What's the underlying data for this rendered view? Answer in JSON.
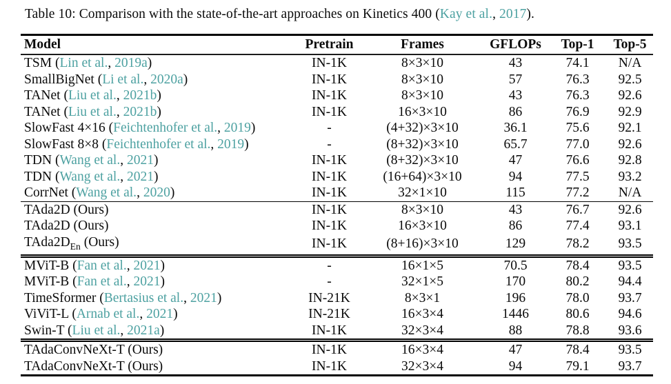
{
  "caption": {
    "prefix": "Table 10: Comparison with the state-of-the-art approaches on Kinetics 400 (",
    "cite_author": "Kay et al.",
    "cite_sep": ", ",
    "cite_year": "2017",
    "suffix": ")."
  },
  "colors": {
    "citation_teal": "#4da1a1",
    "text": "#0a0a0a",
    "background": "#ffffff"
  },
  "table": {
    "headers": [
      "Model",
      "Pretrain",
      "Frames",
      "GFLOPs",
      "Top-1",
      "Top-5"
    ],
    "sections": [
      {
        "separator": "none",
        "rows": [
          {
            "model": "TSM",
            "cite_author": "Lin et al.",
            "cite_year": "2019a",
            "pretrain": "IN-1K",
            "frames": "8×3×10",
            "gflops": "43",
            "top1": "74.1",
            "top5": "N/A"
          },
          {
            "model": "SmallBigNet",
            "cite_author": "Li et al.",
            "cite_year": "2020a",
            "pretrain": "IN-1K",
            "frames": "8×3×10",
            "gflops": "57",
            "top1": "76.3",
            "top5": "92.5"
          },
          {
            "model": "TANet",
            "cite_author": "Liu et al.",
            "cite_year": "2021b",
            "pretrain": "IN-1K",
            "frames": "8×3×10",
            "gflops": "43",
            "top1": "76.3",
            "top5": "92.6"
          },
          {
            "model": "TANet",
            "cite_author": "Liu et al.",
            "cite_year": "2021b",
            "pretrain": "IN-1K",
            "frames": "16×3×10",
            "gflops": "86",
            "top1": "76.9",
            "top5": "92.9"
          },
          {
            "model": "SlowFast 4×16",
            "cite_author": "Feichtenhofer et al.",
            "cite_year": "2019",
            "pretrain": "-",
            "frames": "(4+32)×3×10",
            "gflops": "36.1",
            "top1": "75.6",
            "top5": "92.1"
          },
          {
            "model": "SlowFast 8×8",
            "cite_author": "Feichtenhofer et al.",
            "cite_year": "2019",
            "pretrain": "-",
            "frames": "(8+32)×3×10",
            "gflops": "65.7",
            "top1": "77.0",
            "top5": "92.6"
          },
          {
            "model": "TDN",
            "cite_author": "Wang et al.",
            "cite_year": "2021",
            "pretrain": "IN-1K",
            "frames": "(8+32)×3×10",
            "gflops": "47",
            "top1": "76.6",
            "top5": "92.8"
          },
          {
            "model": "TDN",
            "cite_author": "Wang et al.",
            "cite_year": "2021",
            "pretrain": "IN-1K",
            "frames": "(16+64)×3×10",
            "gflops": "94",
            "top1": "77.5",
            "top5": "93.2"
          },
          {
            "model": "CorrNet",
            "cite_author": "Wang et al.",
            "cite_year": "2020",
            "pretrain": "IN-1K",
            "frames": "32×1×10",
            "gflops": "115",
            "top1": "77.2",
            "top5": "N/A"
          }
        ]
      },
      {
        "separator": "thin",
        "rows": [
          {
            "model": "TAda2D",
            "ours": " (Ours)",
            "pretrain": "IN-1K",
            "frames": "8×3×10",
            "gflops": "43",
            "top1": "76.7",
            "top5": "92.6"
          },
          {
            "model": "TAda2D",
            "ours": " (Ours)",
            "pretrain": "IN-1K",
            "frames": "16×3×10",
            "gflops": "86",
            "top1": "77.4",
            "top5": "93.1"
          },
          {
            "model": "TAda2D",
            "model_sub": "En",
            "ours": " (Ours)",
            "pretrain": "IN-1K",
            "frames": "(8+16)×3×10",
            "gflops": "129",
            "top1": "78.2",
            "top5": "93.5"
          }
        ]
      },
      {
        "separator": "thick",
        "rows": [
          {
            "model": "MViT-B",
            "cite_author": "Fan et al.",
            "cite_year": "2021",
            "pretrain": "-",
            "frames": "16×1×5",
            "gflops": "70.5",
            "top1": "78.4",
            "top5": "93.5"
          },
          {
            "model": "MViT-B",
            "cite_author": "Fan et al.",
            "cite_year": "2021",
            "pretrain": "-",
            "frames": "32×1×5",
            "gflops": "170",
            "top1": "80.2",
            "top5": "94.4"
          },
          {
            "model": "TimeSformer",
            "cite_author": "Bertasius et al.",
            "cite_year": "2021",
            "pretrain": "IN-21K",
            "frames": "8×3×1",
            "gflops": "196",
            "top1": "78.0",
            "top5": "93.7"
          },
          {
            "model": "ViViT-L",
            "cite_author": "Arnab et al.",
            "cite_year": "2021",
            "pretrain": "IN-21K",
            "frames": "16×3×4",
            "gflops": "1446",
            "top1": "80.6",
            "top5": "94.6"
          },
          {
            "model": "Swin-T",
            "cite_author": "Liu et al.",
            "cite_year": "2021a",
            "pretrain": "IN-1K",
            "frames": "32×3×4",
            "gflops": "88",
            "top1": "78.8",
            "top5": "93.6"
          }
        ]
      },
      {
        "separator": "thick",
        "rows": [
          {
            "model": "TAdaConvNeXt-T",
            "ours": " (Ours)",
            "pretrain": "IN-1K",
            "frames": "16×3×4",
            "gflops": "47",
            "top1": "78.4",
            "top5": "93.5"
          },
          {
            "model": "TAdaConvNeXt-T",
            "ours": " (Ours)",
            "pretrain": "IN-1K",
            "frames": "32×3×4",
            "gflops": "94",
            "top1": "79.1",
            "top5": "93.7"
          }
        ]
      }
    ]
  }
}
